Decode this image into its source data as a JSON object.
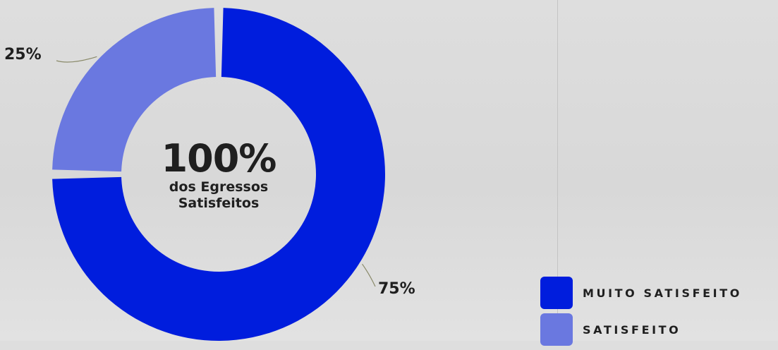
{
  "chart_data": {
    "type": "pie",
    "variant": "donut",
    "categories": [
      "MUITO SATISFEITO",
      "SATISFEITO"
    ],
    "values": [
      75,
      25
    ],
    "data_labels": [
      "75%",
      "25%"
    ],
    "colors": [
      "#001ddd",
      "#6a78e0"
    ],
    "center": {
      "value": "100%",
      "line1": "dos Egressos",
      "line2": "Satisfeitos"
    },
    "legend_position": "bottom-right"
  },
  "legend": {
    "items": [
      {
        "label": "MUITO SATISFEITO",
        "color": "#001ddd"
      },
      {
        "label": "SATISFEITO",
        "color": "#6a78e0"
      }
    ]
  }
}
